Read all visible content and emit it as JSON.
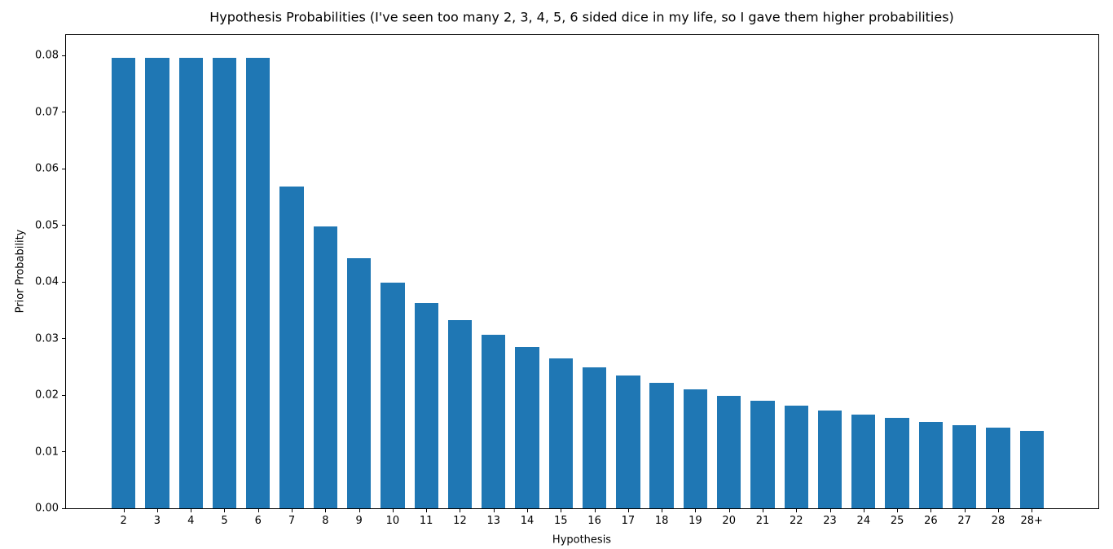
{
  "chart_data": {
    "type": "bar",
    "title": "Hypothesis Probabilities (I've seen too many 2, 3, 4, 5, 6 sided dice in my life, so I gave them higher probabilities)",
    "xlabel": "Hypothesis",
    "ylabel": "Prior Probability",
    "categories": [
      "2",
      "3",
      "4",
      "5",
      "6",
      "7",
      "8",
      "9",
      "10",
      "11",
      "12",
      "13",
      "14",
      "15",
      "16",
      "17",
      "18",
      "19",
      "20",
      "21",
      "22",
      "23",
      "24",
      "25",
      "26",
      "27",
      "28",
      "28+"
    ],
    "values": [
      0.079629,
      0.079629,
      0.079629,
      0.079629,
      0.079629,
      0.056878,
      0.049768,
      0.044238,
      0.039814,
      0.036195,
      0.033179,
      0.030626,
      0.028439,
      0.026543,
      0.024884,
      0.02342,
      0.022119,
      0.020955,
      0.019907,
      0.018959,
      0.018097,
      0.017311,
      0.016589,
      0.015926,
      0.015313,
      0.014746,
      0.01422,
      0.013729
    ],
    "ylim": [
      0,
      0.08361
    ],
    "yticks": [
      "0.00",
      "0.01",
      "0.02",
      "0.03",
      "0.04",
      "0.05",
      "0.06",
      "0.07",
      "0.08"
    ],
    "bar_color": "#1f77b4",
    "grid": false,
    "legend": null,
    "background_color": "#ffffff",
    "spine_color": "#000000"
  }
}
